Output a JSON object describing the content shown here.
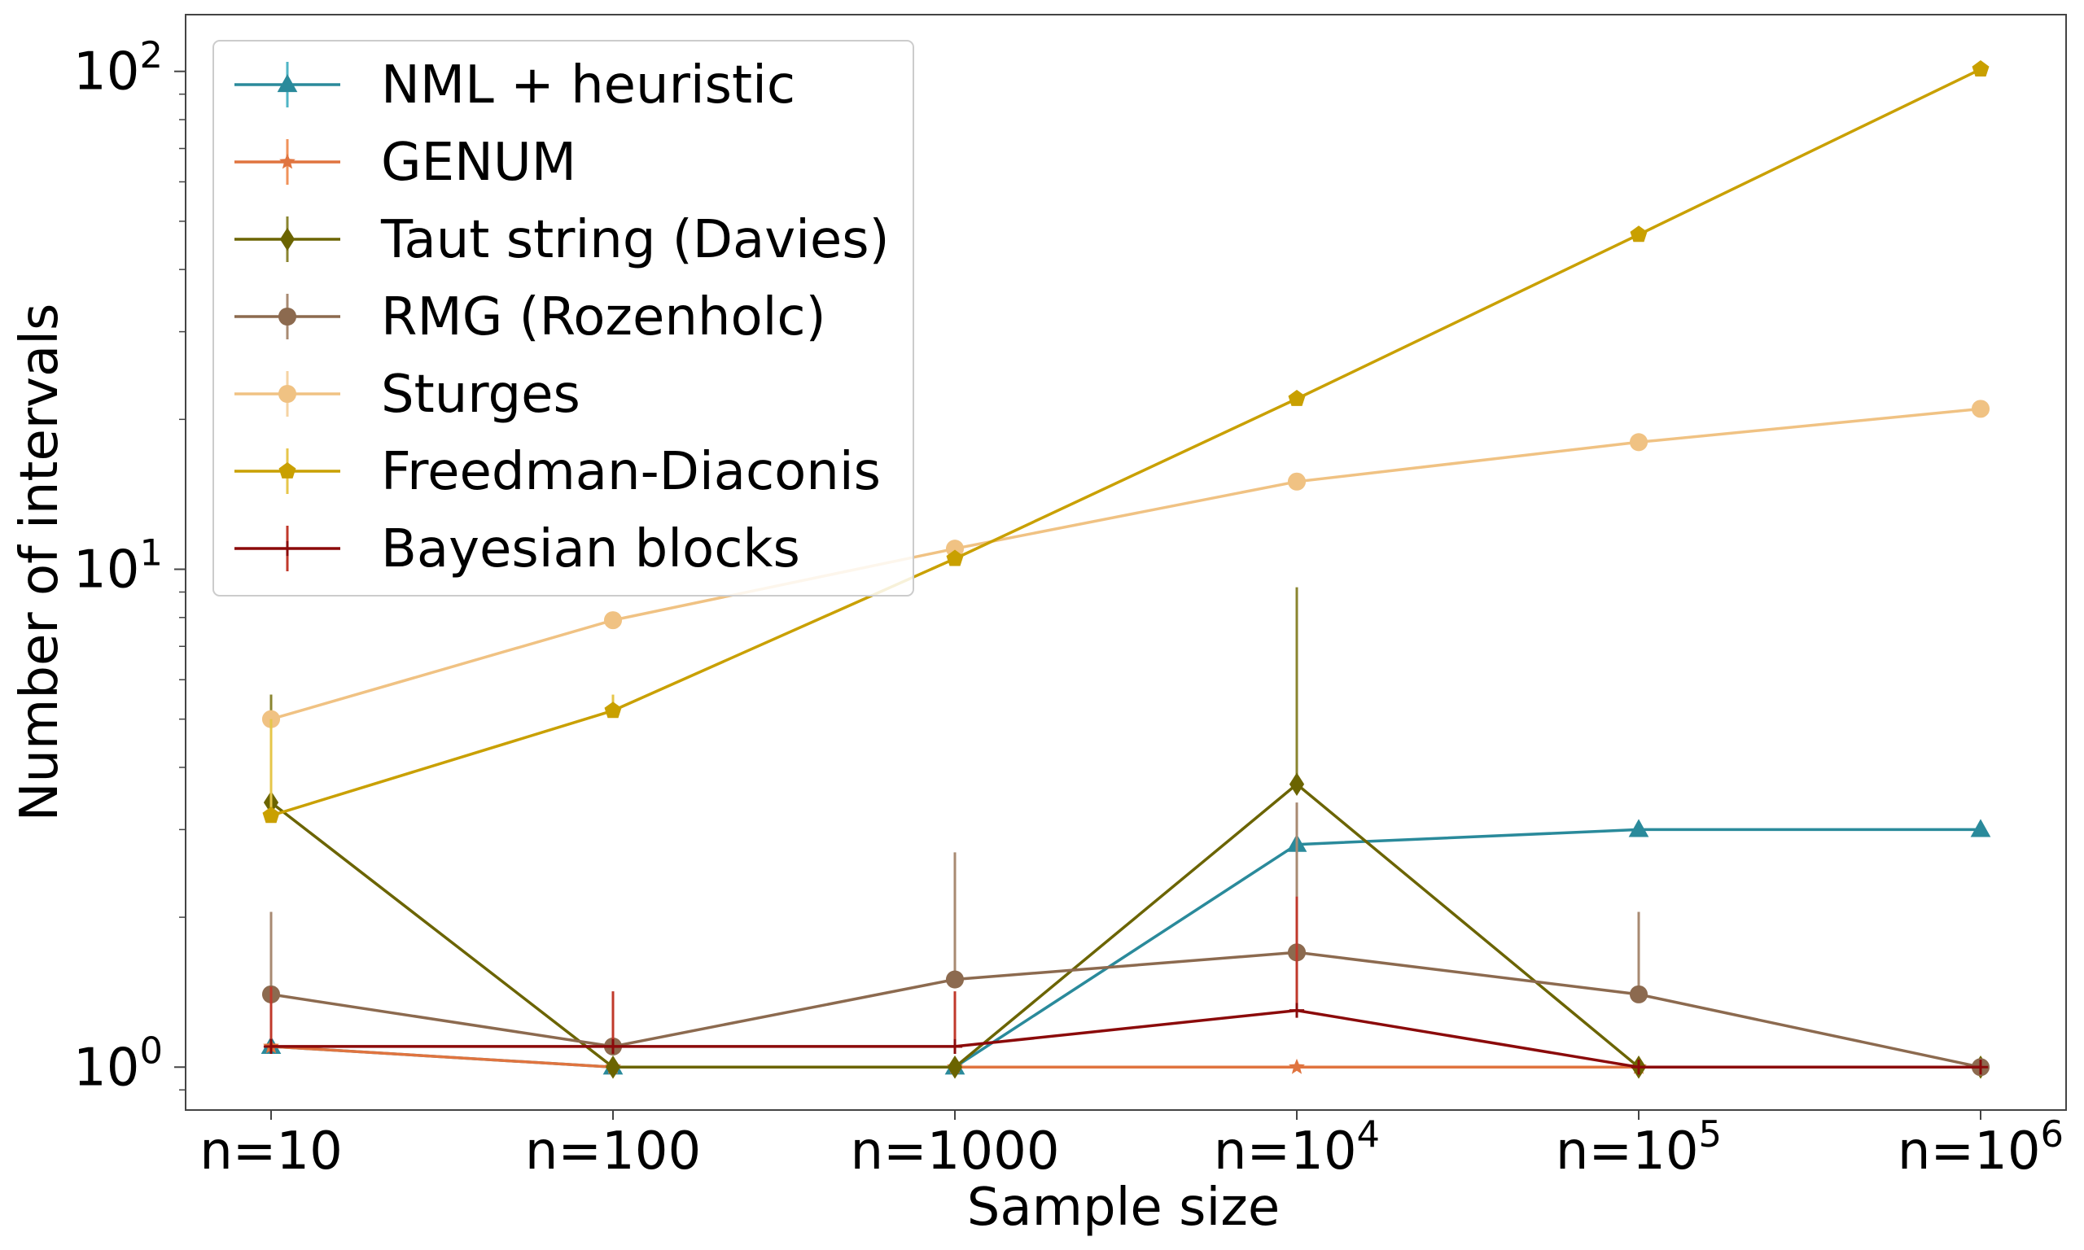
{
  "chart_data": {
    "type": "line",
    "title": "",
    "xlabel": "Sample size",
    "ylabel": "Number of intervals",
    "yscale": "log",
    "ylim": [
      0.82,
      130
    ],
    "categories": [
      {
        "base": "n=10",
        "sup": ""
      },
      {
        "base": "n=100",
        "sup": ""
      },
      {
        "base": "n=1000",
        "sup": ""
      },
      {
        "base": "n=10",
        "sup": "4"
      },
      {
        "base": "n=10",
        "sup": "5"
      },
      {
        "base": "n=10",
        "sup": "6"
      }
    ],
    "yticks": [
      {
        "value": 1,
        "base": "10",
        "sup": "0"
      },
      {
        "value": 10,
        "base": "10",
        "sup": "1"
      },
      {
        "value": 100,
        "base": "10",
        "sup": "2"
      }
    ],
    "legend_position": "top-left",
    "series": [
      {
        "name": "NML + heuristic",
        "color": "#2a8a9b",
        "err_color": "#4fb5c6",
        "marker": "triangle",
        "values": [
          1.1,
          1.0,
          1.0,
          2.8,
          3.0,
          3.0
        ],
        "err": [
          [
            1.1,
            1.1
          ],
          [
            1.0,
            1.0
          ],
          [
            1.0,
            1.0
          ],
          [
            2.8,
            2.8
          ],
          [
            3.0,
            3.0
          ],
          [
            3.0,
            3.0
          ]
        ]
      },
      {
        "name": "GENUM",
        "color": "#e0743f",
        "err_color": "#f0925a",
        "marker": "star",
        "values": [
          1.1,
          1.0,
          1.0,
          1.0,
          1.0,
          1.0
        ],
        "err": [
          [
            1.1,
            1.1
          ],
          [
            1.0,
            1.0
          ],
          [
            1.0,
            1.0
          ],
          [
            1.0,
            1.0
          ],
          [
            1.0,
            1.0
          ],
          [
            1.0,
            1.0
          ]
        ]
      },
      {
        "name": "Taut string (Davies)",
        "color": "#6b6400",
        "err_color": "#8a8530",
        "marker": "diamond",
        "values": [
          3.4,
          1.0,
          1.0,
          3.7,
          1.0,
          1.0
        ],
        "err": [
          [
            3.4,
            5.6
          ],
          [
            1.0,
            1.0
          ],
          [
            1.0,
            1.0
          ],
          [
            3.7,
            9.2
          ],
          [
            1.0,
            1.0
          ],
          [
            1.0,
            1.0
          ]
        ]
      },
      {
        "name": "RMG (Rozenholc)",
        "color": "#8c6a4f",
        "err_color": "#a88a72",
        "marker": "circle",
        "values": [
          1.4,
          1.1,
          1.5,
          1.7,
          1.4,
          1.0
        ],
        "err": [
          [
            1.4,
            2.05
          ],
          [
            1.1,
            1.1
          ],
          [
            1.5,
            2.7
          ],
          [
            1.7,
            3.4
          ],
          [
            1.4,
            2.05
          ],
          [
            1.0,
            1.0
          ]
        ]
      },
      {
        "name": "Sturges",
        "color": "#f0c283",
        "err_color": "#f5d3a3",
        "marker": "circle",
        "values": [
          5.0,
          7.9,
          11.0,
          15.0,
          18.0,
          21.0
        ],
        "err": [
          [
            5.0,
            5.0
          ],
          [
            7.9,
            7.9
          ],
          [
            11.0,
            11.0
          ],
          [
            15.0,
            15.0
          ],
          [
            18.0,
            18.0
          ],
          [
            21.0,
            21.0
          ]
        ]
      },
      {
        "name": "Freedman-Diaconis",
        "color": "#c9a000",
        "err_color": "#e6c64a",
        "marker": "pentagon",
        "values": [
          3.2,
          5.2,
          10.5,
          22.0,
          47.0,
          101.0
        ],
        "err": [
          [
            3.2,
            5.0
          ],
          [
            5.2,
            5.6
          ],
          [
            10.5,
            10.5
          ],
          [
            22.0,
            22.0
          ],
          [
            47.0,
            47.0
          ],
          [
            101.0,
            101.0
          ]
        ]
      },
      {
        "name": "Bayesian blocks",
        "color": "#8b0a0a",
        "err_color": "#c0392b",
        "marker": "plus",
        "values": [
          1.1,
          1.1,
          1.1,
          1.3,
          1.0,
          1.0
        ],
        "err": [
          [
            1.1,
            1.45
          ],
          [
            1.1,
            1.42
          ],
          [
            1.1,
            1.42
          ],
          [
            1.3,
            2.2
          ],
          [
            1.0,
            1.0
          ],
          [
            1.0,
            1.0
          ]
        ]
      }
    ]
  }
}
